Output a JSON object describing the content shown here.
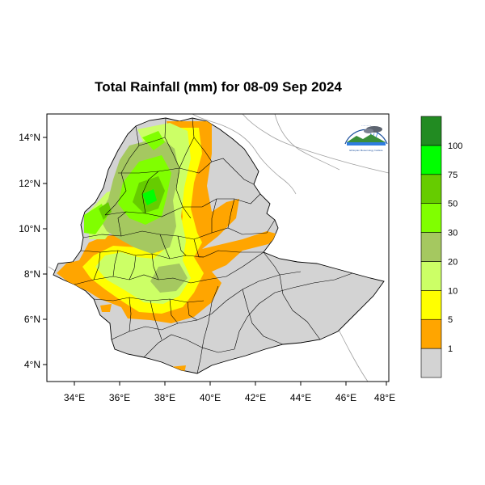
{
  "title": "Total Rainfall (mm) for 08-09 Sep 2024",
  "map": {
    "region": "Ethiopia",
    "x_ticks": [
      "34°E",
      "36°E",
      "38°E",
      "40°E",
      "42°E",
      "44°E",
      "46°E",
      "48°E"
    ],
    "y_ticks": [
      "14°N",
      "12°N",
      "10°N",
      "8°N",
      "6°N",
      "4°N"
    ],
    "x_range_deg": [
      32.8,
      48.2
    ],
    "y_range_deg": [
      3.2,
      15.0
    ]
  },
  "legend": {
    "bins": [
      {
        "label": "",
        "color": "#d3d3d3"
      },
      {
        "label": "1",
        "color": "#ffa500"
      },
      {
        "label": "5",
        "color": "#ffff00"
      },
      {
        "label": "10",
        "color": "#ccff66"
      },
      {
        "label": "20",
        "color": "#a5c860"
      },
      {
        "label": "30",
        "color": "#80ff00"
      },
      {
        "label": "50",
        "color": "#66cc00"
      },
      {
        "label": "75",
        "color": "#00ff00"
      },
      {
        "label": "100",
        "color": "#228b22"
      }
    ]
  },
  "logo": {
    "caption": "Ethiopian Meteorology Institute"
  }
}
